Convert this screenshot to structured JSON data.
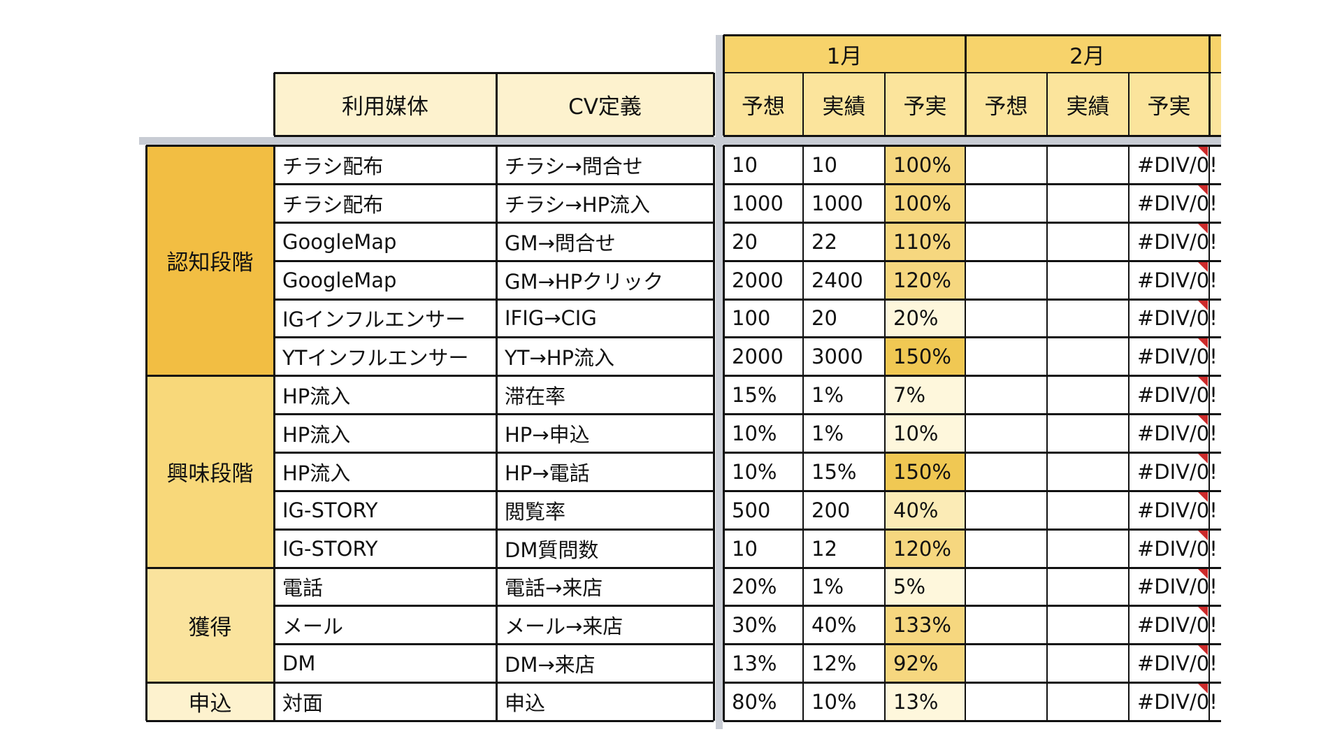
{
  "colors": {
    "header_light": "#fdf2ce",
    "header_month": "#f7d36b",
    "header_sub": "#fbe49c",
    "stage_awareness": "#f2be43",
    "stage_interest": "#f8d87a",
    "stage_acquire": "#fae39d",
    "stage_apply": "#fdf2ce",
    "ratio_vlow": "#fef7dc",
    "ratio_low": "#fbebb6",
    "ratio_mid": "#f6d77f",
    "ratio_high": "#f0c853",
    "error_marker": "#cc2b2b",
    "freeze_line": "#c8ccd4"
  },
  "header": {
    "media_label": "利用媒体",
    "cv_label": "CV定義",
    "months": [
      {
        "label": "1月",
        "forecast": "予想",
        "actual": "実績",
        "ratio": "予実"
      },
      {
        "label": "2月",
        "forecast": "予想",
        "actual": "実績",
        "ratio": "予実"
      }
    ]
  },
  "stages": [
    {
      "label": "認知段階"
    },
    {
      "label": "興味段階"
    },
    {
      "label": "獲得"
    },
    {
      "label": "申込"
    }
  ],
  "rows": [
    {
      "media": "チラシ配布",
      "cv": "チラシ→問合せ",
      "m1_forecast": "10",
      "m1_actual": "10",
      "m1_ratio": "100%",
      "m2_forecast": "",
      "m2_actual": "",
      "m2_ratio": "#DIV/0!"
    },
    {
      "media": "チラシ配布",
      "cv": "チラシ→HP流入",
      "m1_forecast": "1000",
      "m1_actual": "1000",
      "m1_ratio": "100%",
      "m2_forecast": "",
      "m2_actual": "",
      "m2_ratio": "#DIV/0!"
    },
    {
      "media": "GoogleMap",
      "cv": "GM→問合せ",
      "m1_forecast": "20",
      "m1_actual": "22",
      "m1_ratio": "110%",
      "m2_forecast": "",
      "m2_actual": "",
      "m2_ratio": "#DIV/0!"
    },
    {
      "media": "GoogleMap",
      "cv": "GM→HPクリック",
      "m1_forecast": "2000",
      "m1_actual": "2400",
      "m1_ratio": "120%",
      "m2_forecast": "",
      "m2_actual": "",
      "m2_ratio": "#DIV/0!"
    },
    {
      "media": "IGインフルエンサー",
      "cv": "IFIG→CIG",
      "m1_forecast": "100",
      "m1_actual": "20",
      "m1_ratio": "20%",
      "m2_forecast": "",
      "m2_actual": "",
      "m2_ratio": "#DIV/0!"
    },
    {
      "media": "YTインフルエンサー",
      "cv": "YT→HP流入",
      "m1_forecast": "2000",
      "m1_actual": "3000",
      "m1_ratio": "150%",
      "m2_forecast": "",
      "m2_actual": "",
      "m2_ratio": "#DIV/0!"
    },
    {
      "media": "HP流入",
      "cv": "滞在率",
      "m1_forecast": "15%",
      "m1_actual": "1%",
      "m1_ratio": "7%",
      "m2_forecast": "",
      "m2_actual": "",
      "m2_ratio": "#DIV/0!"
    },
    {
      "media": "HP流入",
      "cv": "HP→申込",
      "m1_forecast": "10%",
      "m1_actual": "1%",
      "m1_ratio": "10%",
      "m2_forecast": "",
      "m2_actual": "",
      "m2_ratio": "#DIV/0!"
    },
    {
      "media": "HP流入",
      "cv": "HP→電話",
      "m1_forecast": "10%",
      "m1_actual": "15%",
      "m1_ratio": "150%",
      "m2_forecast": "",
      "m2_actual": "",
      "m2_ratio": "#DIV/0!"
    },
    {
      "media": "IG-STORY",
      "cv": "閲覧率",
      "m1_forecast": "500",
      "m1_actual": "200",
      "m1_ratio": "40%",
      "m2_forecast": "",
      "m2_actual": "",
      "m2_ratio": "#DIV/0!"
    },
    {
      "media": "IG-STORY",
      "cv": "DM質問数",
      "m1_forecast": "10",
      "m1_actual": "12",
      "m1_ratio": "120%",
      "m2_forecast": "",
      "m2_actual": "",
      "m2_ratio": "#DIV/0!"
    },
    {
      "media": "電話",
      "cv": "電話→来店",
      "m1_forecast": "20%",
      "m1_actual": "1%",
      "m1_ratio": "5%",
      "m2_forecast": "",
      "m2_actual": "",
      "m2_ratio": "#DIV/0!"
    },
    {
      "media": "メール",
      "cv": "メール→来店",
      "m1_forecast": "30%",
      "m1_actual": "40%",
      "m1_ratio": "133%",
      "m2_forecast": "",
      "m2_actual": "",
      "m2_ratio": "#DIV/0!"
    },
    {
      "media": "DM",
      "cv": "DM→来店",
      "m1_forecast": "13%",
      "m1_actual": "12%",
      "m1_ratio": "92%",
      "m2_forecast": "",
      "m2_actual": "",
      "m2_ratio": "#DIV/0!"
    },
    {
      "media": "対面",
      "cv": "申込",
      "m1_forecast": "80%",
      "m1_actual": "10%",
      "m1_ratio": "13%",
      "m2_forecast": "",
      "m2_actual": "",
      "m2_ratio": "#DIV/0!"
    }
  ]
}
